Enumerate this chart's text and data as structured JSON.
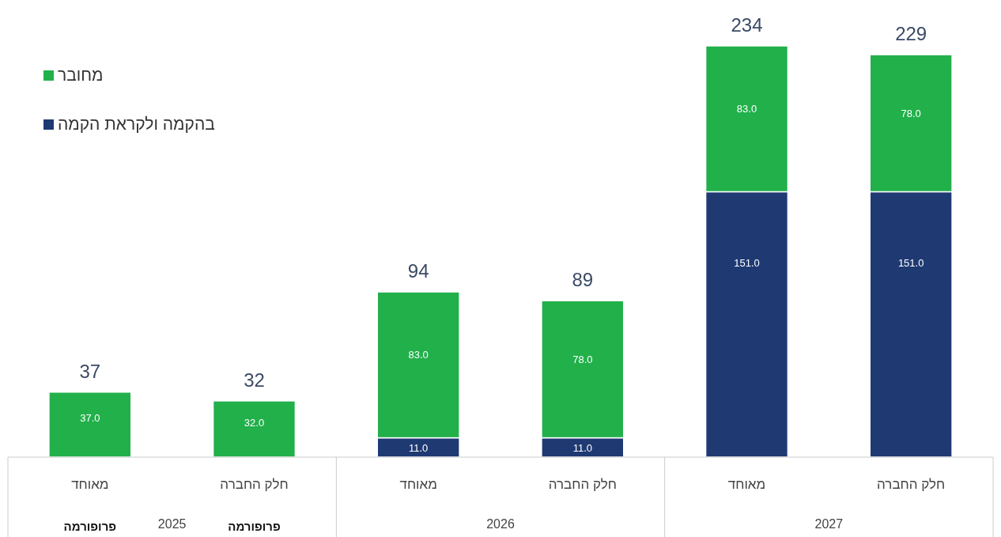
{
  "chart_data": {
    "type": "bar",
    "stacked": true,
    "categories": [
      "מאוחד",
      "חלק החברה",
      "מאוחד",
      "חלק החברה",
      "מאוחד",
      "חלק החברה"
    ],
    "series": [
      {
        "name": "בהקמה ולקראת הקמה",
        "color": "#1f3a73",
        "values": [
          null,
          null,
          11,
          11,
          151,
          151
        ],
        "value_labels": [
          null,
          null,
          "11.0",
          "11.0",
          "151.0",
          "151.0"
        ]
      },
      {
        "name": "מחובר",
        "color": "#22b04b",
        "values": [
          37,
          32,
          83,
          78,
          83,
          78
        ],
        "value_labels": [
          "37.0",
          "32.0",
          "83.0",
          "78.0",
          "83.0",
          "78.0"
        ]
      }
    ],
    "totals": [
      "37",
      "32",
      "94",
      "89",
      "234",
      "229"
    ],
    "annotations": [
      "2025",
      "2026",
      "2027",
      "פרופורמה",
      "פרופורמה"
    ],
    "legend": "top left"
  }
}
